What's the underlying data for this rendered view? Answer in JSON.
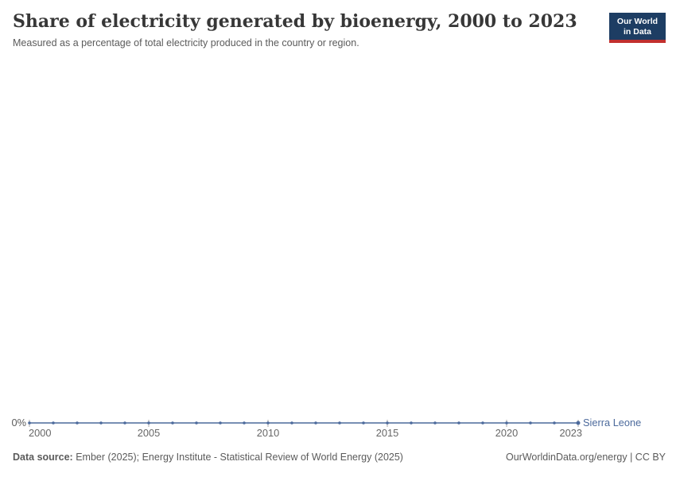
{
  "header": {
    "title": "Share of electricity generated by bioenergy, 2000 to 2023",
    "subtitle": "Measured as a percentage of total electricity produced in the country or region."
  },
  "logo": {
    "line1": "Our World",
    "line2": "in Data",
    "bg_color": "#1d3d63",
    "stripe_color": "#c2302e"
  },
  "chart_data": {
    "type": "line",
    "title": "Share of electricity generated by bioenergy, 2000 to 2023",
    "subtitle": "Measured as a percentage of total electricity produced in the country or region.",
    "x": [
      2000,
      2001,
      2002,
      2003,
      2004,
      2005,
      2006,
      2007,
      2008,
      2009,
      2010,
      2011,
      2012,
      2013,
      2014,
      2015,
      2016,
      2017,
      2018,
      2019,
      2020,
      2021,
      2022,
      2023
    ],
    "series": [
      {
        "name": "Sierra Leone",
        "color": "#4c6a9c",
        "values": [
          0,
          0,
          0,
          0,
          0,
          0,
          0,
          0,
          0,
          0,
          0,
          0,
          0,
          0,
          0,
          0,
          0,
          0,
          0,
          0,
          0,
          0,
          0,
          0
        ]
      }
    ],
    "x_ticks": [
      2000,
      2005,
      2010,
      2015,
      2020,
      2023
    ],
    "y_ticks": [
      0
    ],
    "y_tick_labels": [
      "0%"
    ],
    "xlabel": "",
    "ylabel": "",
    "grid": false,
    "legend_position": "end-of-line",
    "axis_text_color": "#666666",
    "y_label_color": "#5b5b5b",
    "tick_color": "#a7a7a7"
  },
  "footer": {
    "datasource_label": "Data source:",
    "datasource_text": "Ember (2025); Energy Institute - Statistical Review of World Energy (2025)",
    "right_text": "OurWorldinData.org/energy | CC BY"
  }
}
